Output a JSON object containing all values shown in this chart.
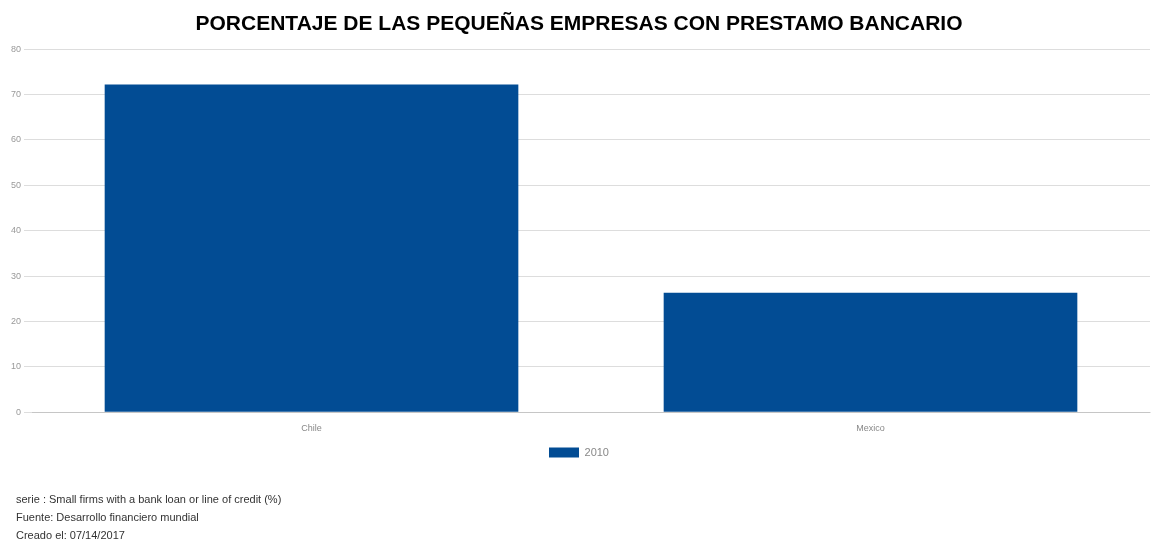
{
  "chart_data": {
    "type": "bar",
    "title": "PORCENTAJE DE LAS PEQUEÑAS EMPRESAS CON PRESTAMO BANCARIO",
    "categories": [
      "Chile",
      "Mexico"
    ],
    "series": [
      {
        "name": "2010",
        "color": "#024c94",
        "values": [
          72.2,
          26.3
        ]
      }
    ],
    "ylim": [
      0,
      80
    ],
    "yticks": [
      0,
      10,
      20,
      30,
      40,
      50,
      60,
      70,
      80
    ],
    "grid": "y",
    "legend": "bottom",
    "annotations": [
      "serie : Small firms with a bank loan or line of credit (%)",
      "Fuente: Desarrollo financiero mundial",
      "Creado el: 07/14/2017"
    ]
  }
}
